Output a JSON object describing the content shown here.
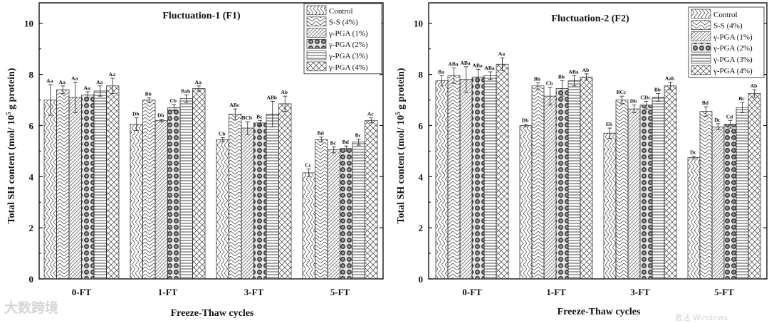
{
  "chart_data": [
    {
      "type": "bar",
      "title": "Fluctuation-1 (F1)",
      "xlabel": "Freeze-Thaw cycles",
      "ylabel_main": "Total SH content (mol/ 10",
      "ylabel_sup": "5",
      "ylabel_end": " g protein)",
      "ylim": [
        0,
        10.8
      ],
      "yticks": [
        0,
        2,
        4,
        6,
        8,
        10
      ],
      "categories": [
        "0-FT",
        "1-FT",
        "3-FT",
        "5-FT"
      ],
      "legend_position": "top-right",
      "series": [
        {
          "name": "Control",
          "values": [
            7.0,
            6.05,
            5.45,
            4.15
          ],
          "errors": [
            0.6,
            0.25,
            0.08,
            0.15
          ],
          "labels": [
            "Aa",
            "Db",
            "Cb",
            "Cc"
          ]
        },
        {
          "name": "S-S (4%)",
          "values": [
            7.4,
            7.0,
            6.45,
            5.45
          ],
          "errors": [
            0.15,
            0.08,
            0.2,
            0.1
          ],
          "labels": [
            "Aa",
            "Bb",
            "ABc",
            "Bd"
          ]
        },
        {
          "name": "γ-PGA (1%)",
          "values": [
            7.1,
            6.2,
            5.9,
            5.05
          ],
          "errors": [
            0.6,
            0.05,
            0.25,
            0.12
          ],
          "labels": [
            "Aa",
            "Db",
            "BCb",
            "Bc"
          ]
        },
        {
          "name": "γ-PGA (2%)",
          "values": [
            7.2,
            6.7,
            6.1,
            5.1
          ],
          "errors": [
            0.12,
            0.12,
            0.1,
            0.1
          ],
          "labels": [
            "Aa",
            "Cb",
            "Bc",
            "Bd"
          ]
        },
        {
          "name": "γ-PGA (3%)",
          "values": [
            7.35,
            7.05,
            6.45,
            5.35
          ],
          "errors": [
            0.2,
            0.15,
            0.5,
            0.12
          ],
          "labels": [
            "Aa",
            "Bab",
            "ABb",
            "Bc"
          ]
        },
        {
          "name": "γ-PGA (4%)",
          "values": [
            7.55,
            7.45,
            6.85,
            6.2
          ],
          "errors": [
            0.3,
            0.1,
            0.3,
            0.1
          ],
          "labels": [
            "Aa",
            "Aa",
            "Ab",
            "Ac"
          ]
        }
      ]
    },
    {
      "type": "bar",
      "title": "Fluctuation-2 (F2)",
      "xlabel": "Freeze-Thaw cycles",
      "ylabel_main": "Total SH content (mol/ 10",
      "ylabel_sup": "5",
      "ylabel_end": " g protein)",
      "ylim": [
        0,
        10.8
      ],
      "yticks": [
        0,
        2,
        4,
        6,
        8,
        10
      ],
      "categories": [
        "0-FT",
        "1-FT",
        "3-FT",
        "5-FT"
      ],
      "legend_position": "top-right",
      "series": [
        {
          "name": "Control",
          "values": [
            7.75,
            6.0,
            5.7,
            4.75
          ],
          "errors": [
            0.2,
            0.05,
            0.2,
            0.05
          ],
          "labels": [
            "Ba",
            "Db",
            "Eb",
            "Dc"
          ]
        },
        {
          "name": "S-S (4%)",
          "values": [
            7.95,
            7.55,
            7.0,
            6.55
          ],
          "errors": [
            0.3,
            0.12,
            0.15,
            0.18
          ],
          "labels": [
            "ABa",
            "Bb",
            "BCc",
            "Bd"
          ]
        },
        {
          "name": "γ-PGA (1%)",
          "values": [
            7.8,
            7.15,
            6.65,
            5.95
          ],
          "errors": [
            0.5,
            0.35,
            0.15,
            0.12
          ],
          "labels": [
            "ABa",
            "Cb",
            "Db",
            "Dc"
          ]
        },
        {
          "name": "γ-PGA (2%)",
          "values": [
            7.9,
            7.45,
            6.8,
            6.05
          ],
          "errors": [
            0.3,
            0.3,
            0.15,
            0.15
          ],
          "labels": [
            "ABa",
            "Bb",
            "CDc",
            "Cd"
          ]
        },
        {
          "name": "γ-PGA (3%)",
          "values": [
            7.95,
            7.75,
            7.1,
            6.7
          ],
          "errors": [
            0.15,
            0.2,
            0.15,
            0.2
          ],
          "labels": [
            "ABa",
            "ABa",
            "Bb",
            "Bc"
          ]
        },
        {
          "name": "γ-PGA (4%)",
          "values": [
            8.4,
            7.9,
            7.55,
            7.25
          ],
          "errors": [
            0.25,
            0.12,
            0.15,
            0.15
          ],
          "labels": [
            "Aa",
            "Ab",
            "Aab",
            "Ab"
          ]
        }
      ]
    }
  ],
  "watermarks": {
    "left": "大数跨境",
    "right": "激活 Windows"
  }
}
